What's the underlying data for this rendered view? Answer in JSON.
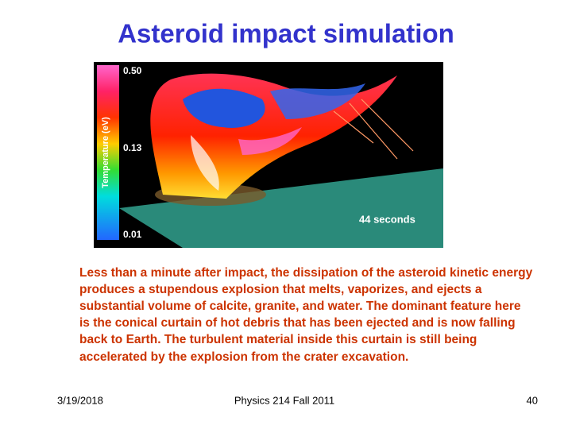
{
  "slide": {
    "title": "Asteroid impact simulation",
    "image": {
      "colorbar_label": "Temperature (eV)",
      "colorbar_ticks": [
        "0.50",
        "0.13",
        "0.01"
      ],
      "time_label": "44 seconds"
    },
    "paragraph_lines": [
      "Less than a minute after impact, the dissipation of the asteroid kinetic energy",
      "produces a stupendous explosion that melts, vaporizes, and ejects a",
      "substantial volume of calcite, granite, and water. The dominant feature here",
      "is the conical curtain of hot debris that has been ejected and is now falling",
      "back to Earth. The turbulent material inside this curtain is still being",
      "accelerated by the explosion from the crater excavation."
    ],
    "footer": {
      "date": "3/19/2018",
      "course": "Physics 214 Fall 2011",
      "page": "40"
    }
  }
}
